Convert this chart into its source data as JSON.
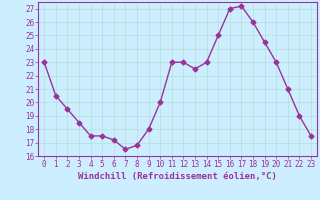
{
  "x": [
    0,
    1,
    2,
    3,
    4,
    5,
    6,
    7,
    8,
    9,
    10,
    11,
    12,
    13,
    14,
    15,
    16,
    17,
    18,
    19,
    20,
    21,
    22,
    23
  ],
  "y": [
    23,
    20.5,
    19.5,
    18.5,
    17.5,
    17.5,
    17.2,
    16.5,
    16.8,
    18.0,
    20.0,
    23.0,
    23.0,
    22.5,
    23.0,
    25.0,
    27.0,
    27.2,
    26.0,
    24.5,
    23.0,
    21.0,
    19.0,
    17.5
  ],
  "line_color": "#993399",
  "marker": "D",
  "marker_size": 2.5,
  "bg_color": "#cceeff",
  "grid_color": "#aaddcc",
  "xlabel": "Windchill (Refroidissement éolien,°C)",
  "ylim": [
    16,
    27.5
  ],
  "xlim": [
    -0.5,
    23.5
  ],
  "yticks": [
    16,
    17,
    18,
    19,
    20,
    21,
    22,
    23,
    24,
    25,
    26,
    27
  ],
  "xticks": [
    0,
    1,
    2,
    3,
    4,
    5,
    6,
    7,
    8,
    9,
    10,
    11,
    12,
    13,
    14,
    15,
    16,
    17,
    18,
    19,
    20,
    21,
    22,
    23
  ],
  "tick_color": "#993399",
  "label_color": "#993399",
  "tick_fontsize": 5.5,
  "xlabel_fontsize": 6.5,
  "linewidth": 1.0
}
